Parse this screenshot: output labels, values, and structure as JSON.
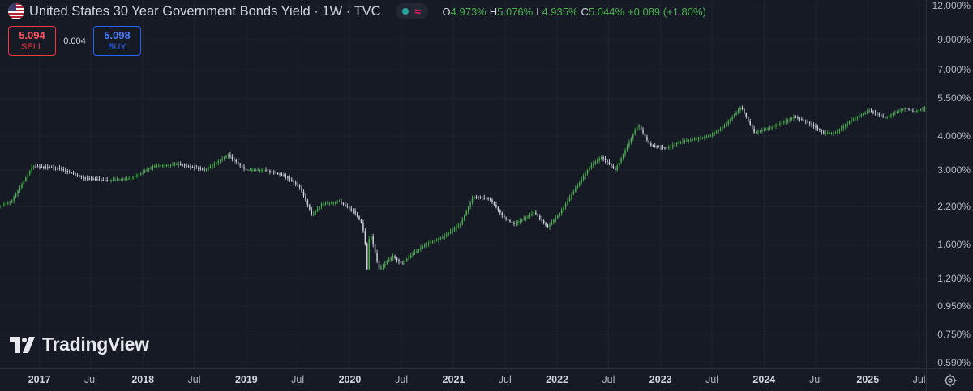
{
  "header": {
    "title": "United States 30 Year Government Bonds Yield · 1W · TVC",
    "ohlc": [
      {
        "key": "O",
        "value": "4.973%"
      },
      {
        "key": "H",
        "value": "5.076%"
      },
      {
        "key": "L",
        "value": "4.935%"
      },
      {
        "key": "C",
        "value": "5.044%"
      }
    ],
    "change": "+0.089 (+1.80%)",
    "market_status_color": "#26a69a",
    "indicator_icon": "wave-icon"
  },
  "trade": {
    "sell_price": "5.094",
    "sell_label": "SELL",
    "spread": "0.004",
    "buy_price": "5.098",
    "buy_label": "BUY"
  },
  "watermark": {
    "brand": "TradingView"
  },
  "colors": {
    "background": "#161a25",
    "grid": "#1f2330",
    "up_candle": "#4caf50",
    "down_candle": "#d1d4dc",
    "sell": "#f23645",
    "buy": "#2962ff"
  },
  "chart_data": {
    "type": "line",
    "style": "weekly-candlestick",
    "yscale": "log",
    "yaxis_ticks": [
      {
        "value": 12.0,
        "label": "12.000%"
      },
      {
        "value": 9.0,
        "label": "9.000%"
      },
      {
        "value": 7.0,
        "label": "7.000%"
      },
      {
        "value": 5.5,
        "label": "5.500%"
      },
      {
        "value": 4.0,
        "label": "4.000%"
      },
      {
        "value": 3.0,
        "label": "3.000%"
      },
      {
        "value": 2.2,
        "label": "2.200%"
      },
      {
        "value": 1.6,
        "label": "1.600%"
      },
      {
        "value": 1.2,
        "label": "1.200%"
      },
      {
        "value": 0.95,
        "label": "0.950%"
      },
      {
        "value": 0.75,
        "label": "0.750%"
      },
      {
        "value": 0.59,
        "label": "0.590%"
      }
    ],
    "ylim": [
      0.59,
      12.0
    ],
    "xlim": [
      "2016-08-15",
      "2025-07-25"
    ],
    "xaxis_ticks": [
      {
        "date": "2017-01-01",
        "label": "2017",
        "year": true
      },
      {
        "date": "2017-07-01",
        "label": "Jul",
        "year": false
      },
      {
        "date": "2018-01-01",
        "label": "2018",
        "year": true
      },
      {
        "date": "2018-07-01",
        "label": "Jul",
        "year": false
      },
      {
        "date": "2019-01-01",
        "label": "2019",
        "year": true
      },
      {
        "date": "2019-07-01",
        "label": "Jul",
        "year": false
      },
      {
        "date": "2020-01-01",
        "label": "2020",
        "year": true
      },
      {
        "date": "2020-07-01",
        "label": "Jul",
        "year": false
      },
      {
        "date": "2021-01-01",
        "label": "2021",
        "year": true
      },
      {
        "date": "2021-07-01",
        "label": "Jul",
        "year": false
      },
      {
        "date": "2022-01-01",
        "label": "2022",
        "year": true
      },
      {
        "date": "2022-07-01",
        "label": "Jul",
        "year": false
      },
      {
        "date": "2023-01-01",
        "label": "2023",
        "year": true
      },
      {
        "date": "2023-07-01",
        "label": "Jul",
        "year": false
      },
      {
        "date": "2024-01-01",
        "label": "2024",
        "year": true
      },
      {
        "date": "2024-07-01",
        "label": "Jul",
        "year": false
      },
      {
        "date": "2025-01-01",
        "label": "2025",
        "year": true
      },
      {
        "date": "2025-07-01",
        "label": "Jul",
        "year": false
      }
    ],
    "x": [
      "2016-08-15",
      "2016-10-01",
      "2016-11-20",
      "2016-12-15",
      "2017-03-15",
      "2017-06-15",
      "2017-09-10",
      "2017-12-01",
      "2018-02-15",
      "2018-05-15",
      "2018-08-15",
      "2018-11-05",
      "2019-01-05",
      "2019-03-15",
      "2019-05-25",
      "2019-07-15",
      "2019-08-28",
      "2019-10-01",
      "2019-12-01",
      "2020-01-25",
      "2020-02-20",
      "2020-03-01",
      "2020-03-09",
      "2020-03-18",
      "2020-04-20",
      "2020-06-08",
      "2020-07-10",
      "2020-08-05",
      "2020-10-01",
      "2020-12-01",
      "2021-02-01",
      "2021-03-18",
      "2021-05-15",
      "2021-07-05",
      "2021-08-10",
      "2021-10-20",
      "2021-12-05",
      "2022-01-20",
      "2022-03-01",
      "2022-05-05",
      "2022-06-14",
      "2022-08-01",
      "2022-10-21",
      "2022-12-01",
      "2023-02-01",
      "2023-03-15",
      "2023-05-15",
      "2023-07-01",
      "2023-08-22",
      "2023-10-19",
      "2023-12-05",
      "2024-02-15",
      "2024-04-25",
      "2024-06-15",
      "2024-08-05",
      "2024-09-16",
      "2024-11-15",
      "2025-01-14",
      "2025-03-10",
      "2025-04-08",
      "2025-05-21",
      "2025-06-20",
      "2025-07-25"
    ],
    "y": [
      2.2,
      2.3,
      2.8,
      3.1,
      3.05,
      2.8,
      2.75,
      2.8,
      3.1,
      3.15,
      3.0,
      3.4,
      3.0,
      3.0,
      2.85,
      2.6,
      2.05,
      2.25,
      2.3,
      2.1,
      1.9,
      1.65,
      1.3,
      1.8,
      1.3,
      1.45,
      1.35,
      1.45,
      1.6,
      1.7,
      1.9,
      2.4,
      2.35,
      2.0,
      1.9,
      2.1,
      1.85,
      2.1,
      2.45,
      3.1,
      3.35,
      3.0,
      4.4,
      3.7,
      3.6,
      3.8,
      3.9,
      4.0,
      4.35,
      5.1,
      4.1,
      4.35,
      4.7,
      4.45,
      4.1,
      4.1,
      4.6,
      4.95,
      4.65,
      4.85,
      5.05,
      4.9,
      5.04
    ]
  }
}
